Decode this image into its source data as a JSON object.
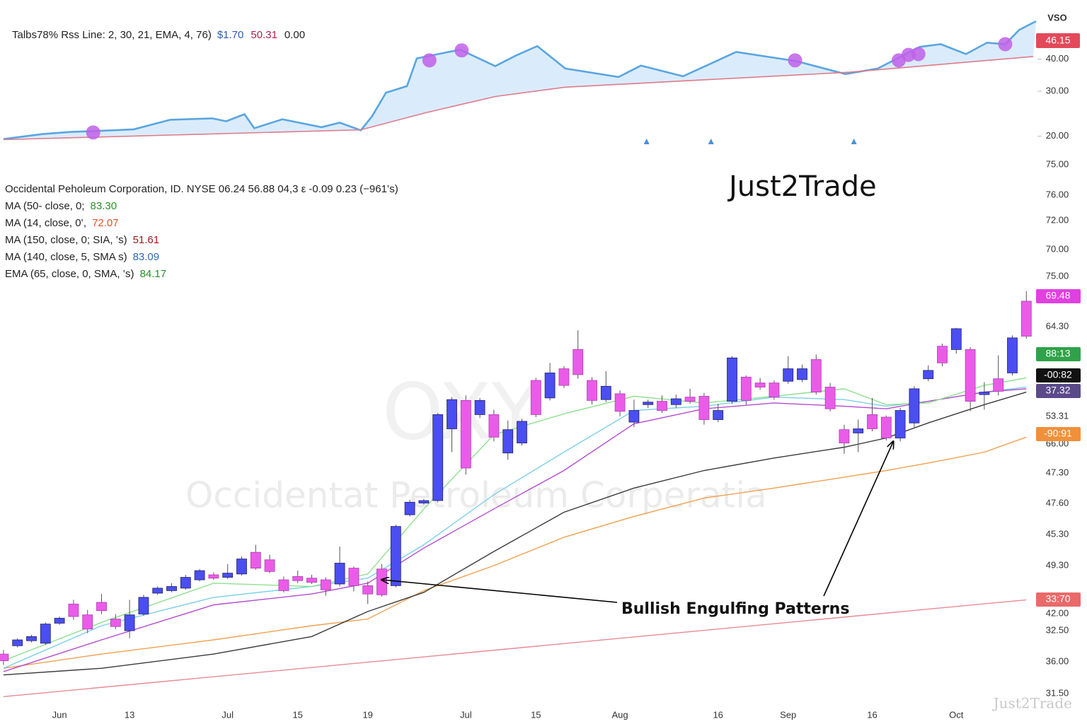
{
  "header": {
    "indicator": "Talbs78% Rss Line: 2, 30, 21, EMA, 4, 76)",
    "values": [
      {
        "text": "$1.70",
        "color": "#2a5db0"
      },
      {
        "text": "50.31",
        "color": "#b0204a"
      },
      {
        "text": "0.00",
        "color": "#222222"
      }
    ]
  },
  "symbol_line": "Occidental Peholeum Corporation, ID. NYSE 06.24  56.88  04,3 ε -0.09  0.23 (−961‛s)",
  "indicators": [
    {
      "name": "MA (50- close, 0;",
      "value": "83.30",
      "color": "#2e8b2e"
    },
    {
      "name": "MA (14, close, 0‛,",
      "value": "72.07",
      "color": "#e0502a"
    },
    {
      "name": "MA (150, close, 0;  SIA, ‛s)",
      "value": "51.61",
      "color": "#a01818"
    },
    {
      "name": "MA (140, close, 5, SMA  s)",
      "value": "83.09",
      "color": "#2a6ab8"
    },
    {
      "name": "EMA (65, close, 0, SMA, ‛s)",
      "value": "84.17",
      "color": "#2e8b2e"
    }
  ],
  "watermarks": {
    "brand": "Just2Trade",
    "symbol": "OXY",
    "company": "Occidentat Petroleum Corperatia",
    "corner": "Just2Trade"
  },
  "annotation": "Bullish Engulfing Patterns",
  "chart_data": [
    {
      "type": "area",
      "title": "VSO",
      "log_scale": true,
      "xlim": [
        -0.25,
        73.75
      ],
      "ylim": [
        19.1,
        56.3
      ],
      "yticks": [
        {
          "value": 40,
          "label": "40.00"
        },
        {
          "value": 30,
          "label": "30.00"
        },
        {
          "value": 20,
          "label": "20.00"
        }
      ],
      "last_value_label": "46.15",
      "last_value_color": "#e24a5a",
      "fill_color": "#d4e9fb",
      "series": [
        {
          "color": "#5aa5e0",
          "x": [
            0,
            2.8,
            4.8,
            7.8,
            9.3,
            11.9,
            14.9,
            15.9,
            17.2,
            17.9,
            19.9,
            22.7,
            24.0,
            25.5,
            26.3,
            27.3,
            28.8,
            29.5,
            32.6,
            35.1,
            36.6,
            38.1,
            40.1,
            43.9,
            45.5,
            48.5,
            52.3,
            56.6,
            60.1,
            62.4,
            65.4,
            66.9,
            68.7,
            70.2,
            71.5,
            72.5,
            73.7
          ],
          "values": [
            19.5,
            20.4,
            20.8,
            21.1,
            21.3,
            23.2,
            23.5,
            22.9,
            24.4,
            21.5,
            23.3,
            21.7,
            22.6,
            21.1,
            23.9,
            29.6,
            31.4,
            40.3,
            43.6,
            37.6,
            41.4,
            45.0,
            36.8,
            34.1,
            37.8,
            34.3,
            42.7,
            39.3,
            35.0,
            36.8,
            44.7,
            45.8,
            41.9,
            46.4,
            45.8,
            52.1,
            56.3
          ]
        },
        {
          "color": "#e07a8a",
          "x": [
            0,
            25.5,
            30.1,
            35.1,
            40.1,
            50.3,
            60.4,
            73.5
          ],
          "values": [
            19.4,
            21.2,
            24.7,
            28.6,
            31.1,
            33.3,
            35.6,
            41.0
          ]
        }
      ],
      "markers": {
        "color": "#c060e8",
        "x": [
          6.4,
          30.4,
          32.7,
          56.5,
          63.9,
          64.6,
          65.3,
          71.5
        ],
        "values": [
          20.7,
          39.6,
          43.3,
          39.6,
          39.6,
          41.6,
          41.9,
          45.8
        ]
      },
      "signals": {
        "color": "#4a90d9",
        "x": [
          45.9,
          50.5,
          60.7
        ]
      }
    },
    {
      "type": "candlestick",
      "up_color": "#4b4ef0",
      "down_color": "#ea5ce8",
      "ylim": [
        30,
        80
      ],
      "categories": [
        null,
        null,
        null,
        null,
        "Jun",
        null,
        null,
        null,
        null,
        "13",
        null,
        null,
        null,
        null,
        null,
        null,
        "Jul",
        null,
        null,
        null,
        null,
        "15",
        null,
        null,
        null,
        null,
        "19",
        null,
        null,
        null,
        null,
        null,
        null,
        "Jul",
        null,
        null,
        null,
        null,
        "15",
        null,
        null,
        null,
        null,
        null,
        "Aug",
        null,
        null,
        null,
        null,
        null,
        null,
        "16",
        null,
        null,
        null,
        null,
        "Sep",
        null,
        null,
        null,
        null,
        null,
        "16",
        null,
        null,
        null,
        null,
        null,
        "Oct",
        null,
        null,
        null,
        null,
        null
      ],
      "open": [
        35.5,
        36.5,
        37.1,
        36.8,
        39.2,
        41.5,
        40.2,
        41.7,
        39.7,
        38.3,
        40.3,
        42.8,
        43.1,
        43.4,
        44.4,
        45.0,
        44.7,
        45.1,
        47.7,
        46.8,
        44.4,
        44.8,
        44.6,
        44.4,
        43.9,
        45.8,
        43.7,
        45.7,
        43.7,
        52.2,
        53.6,
        53.9,
        62.5,
        65.9,
        64.2,
        64.2,
        59.6,
        60.8,
        68.3,
        66.2,
        69.7,
        72.0,
        68.3,
        66.0,
        66.7,
        63.3,
        65.4,
        65.8,
        65.4,
        66.3,
        66.4,
        63.6,
        65.8,
        68.7,
        68.0,
        68.0,
        68.2,
        68.4,
        70.8,
        67.5,
        62.4,
        62.0,
        64.2,
        63.9,
        61.4,
        63.2,
        68.5,
        72.4,
        72.0,
        72.0,
        66.6,
        68.5,
        69.2,
        77.8
      ],
      "close": [
        34.7,
        37.2,
        37.6,
        39.1,
        39.8,
        40.0,
        38.5,
        40.7,
        38.8,
        40.2,
        42.3,
        43.4,
        43.6,
        44.7,
        45.5,
        44.6,
        45.2,
        46.9,
        45.8,
        45.4,
        43.1,
        44.3,
        44.1,
        43.2,
        46.4,
        43.7,
        42.7,
        42.6,
        50.8,
        53.7,
        53.9,
        64.2,
        66.0,
        57.8,
        65.9,
        61.5,
        62.4,
        63.4,
        64.2,
        69.2,
        67.7,
        69.0,
        65.9,
        67.6,
        64.6,
        64.7,
        65.7,
        64.7,
        66.1,
        65.8,
        63.6,
        64.7,
        71.0,
        65.9,
        67.5,
        66.3,
        69.7,
        69.7,
        66.9,
        64.9,
        60.8,
        62.5,
        62.5,
        61.4,
        64.7,
        67.3,
        69.5,
        70.4,
        74.5,
        65.8,
        66.9,
        67.0,
        73.4,
        73.6
      ],
      "high": [
        36.0,
        37.4,
        37.8,
        39.3,
        40.0,
        42.0,
        40.8,
        42.7,
        40.3,
        42.0,
        42.6,
        43.6,
        44.0,
        45.0,
        45.7,
        45.3,
        46.3,
        47.2,
        48.6,
        47.4,
        44.8,
        45.5,
        45.0,
        44.7,
        48.4,
        46.0,
        44.2,
        46.3,
        51.0,
        54.0,
        54.1,
        64.4,
        66.3,
        66.5,
        66.2,
        64.8,
        63.5,
        63.7,
        68.6,
        70.4,
        70.0,
        74.3,
        68.7,
        69.4,
        67.1,
        66.0,
        66.0,
        66.5,
        66.6,
        67.3,
        66.8,
        65.5,
        71.2,
        68.9,
        68.6,
        68.3,
        71.2,
        70.2,
        71.4,
        68.0,
        63.0,
        63.6,
        66.2,
        64.1,
        65.0,
        67.6,
        70.1,
        72.7,
        74.6,
        72.3,
        68.1,
        71.3,
        73.7,
        79.0
      ],
      "low": [
        34.2,
        36.3,
        36.9,
        36.6,
        39.0,
        39.6,
        38.0,
        40.3,
        38.5,
        37.4,
        40.1,
        42.6,
        42.9,
        43.2,
        44.2,
        44.4,
        44.5,
        44.9,
        45.6,
        45.2,
        42.9,
        44.0,
        43.9,
        42.5,
        43.6,
        43.0,
        41.5,
        42.4,
        43.5,
        52.0,
        53.4,
        53.7,
        59.7,
        57.0,
        63.8,
        61.0,
        58.8,
        60.5,
        63.9,
        65.9,
        67.4,
        68.5,
        65.4,
        65.7,
        64.0,
        62.7,
        65.0,
        64.4,
        65.0,
        65.5,
        63.0,
        63.3,
        65.5,
        65.4,
        67.2,
        66.0,
        67.9,
        68.1,
        66.6,
        64.6,
        59.5,
        59.7,
        62.2,
        61.1,
        61.0,
        62.7,
        68.2,
        70.0,
        71.5,
        64.6,
        64.8,
        66.5,
        68.9,
        73.3
      ],
      "lines": [
        {
          "color": "#e88a94",
          "x": [
            0,
            73
          ],
          "values": [
            30.4,
            42.0
          ]
        },
        {
          "color": "#f0a050",
          "x": [
            0,
            7,
            15,
            22,
            26,
            30,
            35,
            40,
            45,
            50,
            55,
            60,
            63,
            66,
            70,
            73
          ],
          "values": [
            33.8,
            35.5,
            37.2,
            38.9,
            39.7,
            43.1,
            46.1,
            49.5,
            52.0,
            54.2,
            55.4,
            56.7,
            57.5,
            58.4,
            59.7,
            61.5
          ]
        },
        {
          "color": "#3a3a3a",
          "x": [
            0,
            7,
            15,
            22,
            26,
            30,
            35,
            40,
            45,
            50,
            55,
            60,
            63,
            66,
            70,
            73
          ],
          "values": [
            33.0,
            33.8,
            35.5,
            37.6,
            40.6,
            42.9,
            47.8,
            52.5,
            55.4,
            57.5,
            59.0,
            60.3,
            61.4,
            63.2,
            65.4,
            66.9
          ]
        },
        {
          "color": "#7ccfe8",
          "x": [
            0,
            7,
            15,
            22,
            26,
            30,
            35,
            40,
            45,
            50,
            55,
            60,
            63,
            66,
            70,
            73
          ],
          "values": [
            33.8,
            38.9,
            42.3,
            43.6,
            44.6,
            48.6,
            54.6,
            59.7,
            64.7,
            65.2,
            66.3,
            66.0,
            65.2,
            65.8,
            66.9,
            67.5
          ]
        },
        {
          "color": "#b44ccf",
          "x": [
            0,
            7,
            15,
            22,
            26,
            30,
            35,
            40,
            45,
            50,
            55,
            60,
            63,
            66,
            70,
            73
          ],
          "values": [
            33.4,
            37.2,
            41.4,
            42.7,
            44.0,
            48.2,
            52.9,
            57.5,
            63.1,
            64.9,
            65.6,
            65.2,
            64.9,
            65.8,
            66.9,
            67.3
          ]
        },
        {
          "color": "#8ee08e",
          "x": [
            0,
            7,
            15,
            22,
            26,
            30,
            35,
            40,
            45,
            50,
            55,
            60,
            63,
            66,
            70,
            73
          ],
          "values": [
            34.7,
            39.3,
            44.0,
            43.6,
            45.1,
            52.9,
            61.8,
            64.3,
            66.4,
            65.6,
            66.4,
            67.3,
            65.4,
            65.6,
            67.7,
            68.6
          ]
        }
      ],
      "axis_labels": [
        "75.00",
        "76.00",
        "72.00",
        "70.00",
        "75.00",
        "64.30",
        "53.31",
        "66.00",
        "47.30",
        "47.60",
        "45.30",
        "49.30",
        "42.00",
        "32.50",
        "36.00",
        "31.50"
      ],
      "badges": [
        {
          "label": "69.48",
          "color": "#e040e0"
        },
        {
          "label": "88:13",
          "color": "#2fa24a"
        },
        {
          "label": "-00:82",
          "color": "#111111"
        },
        {
          "label": "37.32",
          "color": "#5a4a8a"
        },
        {
          "label": "-90:91",
          "color": "#f0903a"
        },
        {
          "label": "33:70",
          "color": "#ea6a6a"
        }
      ]
    }
  ]
}
